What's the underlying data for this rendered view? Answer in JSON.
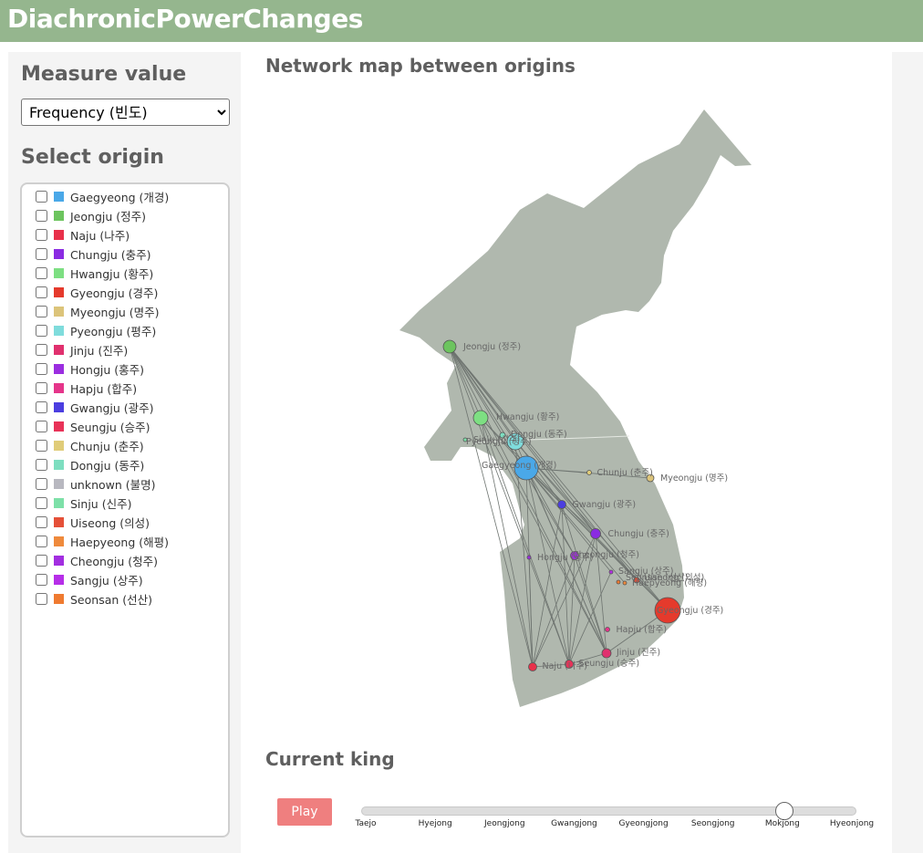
{
  "app": {
    "title": "DiachronicPowerChanges"
  },
  "sidebar": {
    "measure_title": "Measure value",
    "measure_selected": "Frequency (빈도)",
    "origin_title": "Select origin",
    "origins": [
      {
        "label": "Gaegyeong (개경)",
        "color": "#4aa8e8"
      },
      {
        "label": "Jeongju (정주)",
        "color": "#6cc45e"
      },
      {
        "label": "Naju (나주)",
        "color": "#e8304a"
      },
      {
        "label": "Chungju (충주)",
        "color": "#8a2be2"
      },
      {
        "label": "Hwangju (황주)",
        "color": "#7ddf82"
      },
      {
        "label": "Gyeongju (경주)",
        "color": "#e53a2c"
      },
      {
        "label": "Myeongju (명주)",
        "color": "#dcc47a"
      },
      {
        "label": "Pyeongju (평주)",
        "color": "#7fdcdc"
      },
      {
        "label": "Jinju (진주)",
        "color": "#e0306e"
      },
      {
        "label": "Hongju (홍주)",
        "color": "#9b2ee0"
      },
      {
        "label": "Hapju (합주)",
        "color": "#e5358a"
      },
      {
        "label": "Gwangju (광주)",
        "color": "#4b3ee0"
      },
      {
        "label": "Seungju (승주)",
        "color": "#e83258"
      },
      {
        "label": "Chunju (춘주)",
        "color": "#e0cc78"
      },
      {
        "label": "Dongju (동주)",
        "color": "#7ddec0"
      },
      {
        "label": "unknown (불명)",
        "color": "#b8b8c0"
      },
      {
        "label": "Sinju (신주)",
        "color": "#7de0a8"
      },
      {
        "label": "Uiseong (의성)",
        "color": "#e55038"
      },
      {
        "label": "Haepyeong (해평)",
        "color": "#ef8a3c"
      },
      {
        "label": "Cheongju (청주)",
        "color": "#a22ee0"
      },
      {
        "label": "Sangju (상주)",
        "color": "#b62ee8"
      },
      {
        "label": "Seonsan (선산)",
        "color": "#ef7a30"
      }
    ]
  },
  "main": {
    "map_title": "Network map between origins",
    "king_title": "Current king",
    "play_label": "Play",
    "kings": [
      "Taejo",
      "Hyejong",
      "Jeongjong",
      "Gwangjong",
      "Gyeongjong",
      "Seongjong",
      "Mokjong",
      "Hyeonjong"
    ],
    "current_king": "Mokjong"
  },
  "map_nodes": [
    {
      "id": "jeongju",
      "label": "Jeongju (정주)",
      "color": "#6cc45e"
    },
    {
      "id": "hwangju",
      "label": "Hwangju (황주)",
      "color": "#7ddf82"
    },
    {
      "id": "dongju",
      "label": "Dongju (동주)",
      "color": "#7ddec0"
    },
    {
      "id": "sinju",
      "label": "Sinju (신주)",
      "color": "#7de0a8"
    },
    {
      "id": "pyeongju",
      "label": "Pyeongju (평주)",
      "color": "#7fdcdc"
    },
    {
      "id": "gaegyeong",
      "label": "Gaegyeong (개경)",
      "color": "#4aa8e8"
    },
    {
      "id": "chunju",
      "label": "Chunju (춘주)",
      "color": "#e0cc78"
    },
    {
      "id": "myeongju",
      "label": "Myeongju (명주)",
      "color": "#dcc47a"
    },
    {
      "id": "gwangju",
      "label": "Gwangju (광주)",
      "color": "#4b3ee0"
    },
    {
      "id": "chungju",
      "label": "Chungju (충주)",
      "color": "#8a2be2"
    },
    {
      "id": "hongju",
      "label": "Hongju (홍주)",
      "color": "#9b2ee0"
    },
    {
      "id": "cheongju",
      "label": "Cheongju (청주)",
      "color": "#a22ee0"
    },
    {
      "id": "sangju",
      "label": "Sangju (상주)",
      "color": "#b62ee8"
    },
    {
      "id": "seonsan",
      "label": "Seonsan (선산)",
      "color": "#ef7a30"
    },
    {
      "id": "haepyeong",
      "label": "Haepyeong (해평)",
      "color": "#ef8a3c"
    },
    {
      "id": "uiseong",
      "label": "Uiseong (의성)",
      "color": "#e55038"
    },
    {
      "id": "gyeongju",
      "label": "Gyeongju (경주)",
      "color": "#e53a2c"
    },
    {
      "id": "hapju",
      "label": "Hapju (합주)",
      "color": "#e5358a"
    },
    {
      "id": "jinju",
      "label": "Jinju (진주)",
      "color": "#e0306e"
    },
    {
      "id": "naju",
      "label": "Naju (나주)",
      "color": "#e8304a"
    },
    {
      "id": "seungju",
      "label": "Seungju (승주)",
      "color": "#e83258"
    }
  ]
}
